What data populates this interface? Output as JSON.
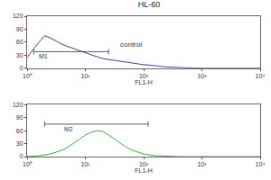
{
  "chart_data": [
    {
      "type": "line",
      "title": "HL-60",
      "color": "#3b3bb0",
      "log": "x",
      "xlabel": "FL1-H",
      "x": [
        1,
        1.3,
        1.6,
        2,
        2.5,
        3.2,
        4,
        5,
        6.3,
        8,
        10,
        13,
        16,
        20,
        25,
        32,
        40,
        50,
        63,
        80,
        100,
        130,
        160,
        200,
        250,
        320,
        400,
        500,
        1000,
        10000
      ],
      "values": [
        25,
        45,
        60,
        75,
        70,
        62,
        55,
        50,
        45,
        40,
        35,
        30,
        26,
        22,
        20,
        18,
        15,
        13,
        12,
        10,
        8,
        7,
        5,
        4,
        3,
        2,
        1,
        1,
        0,
        0
      ],
      "xlim": [
        1,
        10000
      ],
      "xticks": [
        {
          "value": 1,
          "label": "10⁰"
        },
        {
          "value": 10,
          "label": "10¹"
        },
        {
          "value": 100,
          "label": "10²"
        },
        {
          "value": 1000,
          "label": "10³"
        },
        {
          "value": 10000,
          "label": "10⁴"
        }
      ],
      "ylim": [
        0,
        120
      ],
      "yticks": [
        0,
        30,
        60,
        90,
        120
      ],
      "gate": {
        "label": "M1",
        "x": [
          1.3,
          25
        ],
        "y": 38
      },
      "annotations": [
        {
          "text": "control",
          "x": 60,
          "y": 55
        }
      ]
    },
    {
      "type": "line",
      "color": "#3cb043",
      "log": "x",
      "xlabel": "FL1-H",
      "x": [
        1,
        1.6,
        2.5,
        4,
        5,
        6.3,
        8,
        10,
        13,
        16,
        20,
        25,
        32,
        40,
        50,
        63,
        80,
        100,
        160,
        250,
        400,
        1000,
        10000
      ],
      "values": [
        0,
        2,
        6,
        15,
        22,
        30,
        40,
        50,
        57,
        60,
        58,
        50,
        40,
        30,
        22,
        15,
        10,
        6,
        2,
        1,
        0,
        0,
        0
      ],
      "xlim": [
        1,
        10000
      ],
      "xticks": [
        {
          "value": 1,
          "label": "10⁰"
        },
        {
          "value": 10,
          "label": "10¹"
        },
        {
          "value": 100,
          "label": "10²"
        },
        {
          "value": 1000,
          "label": "10³"
        },
        {
          "value": 10000,
          "label": "10⁴"
        }
      ],
      "ylim": [
        0,
        120
      ],
      "yticks": [
        0,
        30,
        60,
        90,
        120
      ],
      "gate": {
        "label": "M2",
        "x": [
          2,
          120
        ],
        "y": 75
      }
    }
  ]
}
